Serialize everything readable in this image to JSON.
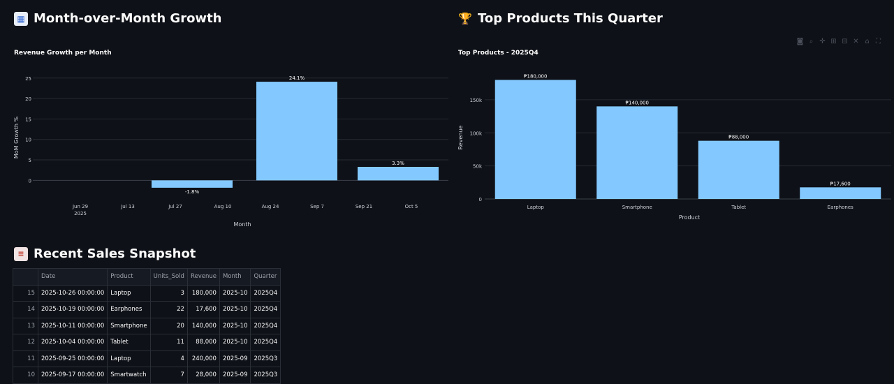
{
  "sections": {
    "mom": {
      "icon": "calendar-icon",
      "title": "Month-over-Month Growth"
    },
    "top": {
      "icon": "trophy-icon",
      "title": "Top Products This Quarter"
    },
    "recent": {
      "icon": "receipt-icon",
      "title": "Recent Sales Snapshot"
    }
  },
  "modebar": [
    "camera-icon",
    "zoom-icon",
    "pan-icon",
    "zoom-in-icon",
    "zoom-out-icon",
    "autoscale-icon",
    "reset-icon",
    "fullscreen-icon"
  ],
  "chart_data": [
    {
      "type": "bar",
      "title": "Revenue Growth per Month",
      "xlabel": "Month",
      "ylabel": "MoM Growth %",
      "x_ticks": [
        "Jun 29\n2025",
        "Jul 13",
        "Jul 27",
        "Aug 10",
        "Aug 24",
        "Sep 7",
        "Sep 21",
        "Oct 5"
      ],
      "y_ticks": [
        "0",
        "5",
        "10",
        "15",
        "20",
        "25"
      ],
      "ylim": [
        -2.5,
        26.5
      ],
      "bars": [
        {
          "value": -1.8,
          "label": "-1.8%"
        },
        {
          "value": 24.1,
          "label": "24.1%"
        },
        {
          "value": 3.3,
          "label": "3.3%"
        }
      ],
      "color": "#83c9ff",
      "grid": true
    },
    {
      "type": "bar",
      "title": "Top Products - 2025Q4",
      "xlabel": "Product",
      "ylabel": "Revenue",
      "categories": [
        "Laptop",
        "Smartphone",
        "Tablet",
        "Earphones"
      ],
      "values": [
        180000,
        140000,
        88000,
        17600
      ],
      "labels": [
        "₱180,000",
        "₱140,000",
        "₱88,000",
        "₱17,600"
      ],
      "y_ticks": [
        "0",
        "50k",
        "100k",
        "150k"
      ],
      "ylim": [
        0,
        190000
      ],
      "color": "#83c9ff",
      "grid": true
    }
  ],
  "table": {
    "columns": [
      "",
      "Date",
      "Product",
      "Units_Sold",
      "Revenue",
      "Month",
      "Quarter"
    ],
    "rows": [
      [
        "15",
        "2025-10-26 00:00:00",
        "Laptop",
        "3",
        "180,000",
        "2025-10",
        "2025Q4"
      ],
      [
        "14",
        "2025-10-19 00:00:00",
        "Earphones",
        "22",
        "17,600",
        "2025-10",
        "2025Q4"
      ],
      [
        "13",
        "2025-10-11 00:00:00",
        "Smartphone",
        "20",
        "140,000",
        "2025-10",
        "2025Q4"
      ],
      [
        "12",
        "2025-10-04 00:00:00",
        "Tablet",
        "11",
        "88,000",
        "2025-10",
        "2025Q4"
      ],
      [
        "11",
        "2025-09-25 00:00:00",
        "Laptop",
        "4",
        "240,000",
        "2025-09",
        "2025Q3"
      ],
      [
        "10",
        "2025-09-17 00:00:00",
        "Smartwatch",
        "7",
        "28,000",
        "2025-09",
        "2025Q3"
      ]
    ]
  }
}
